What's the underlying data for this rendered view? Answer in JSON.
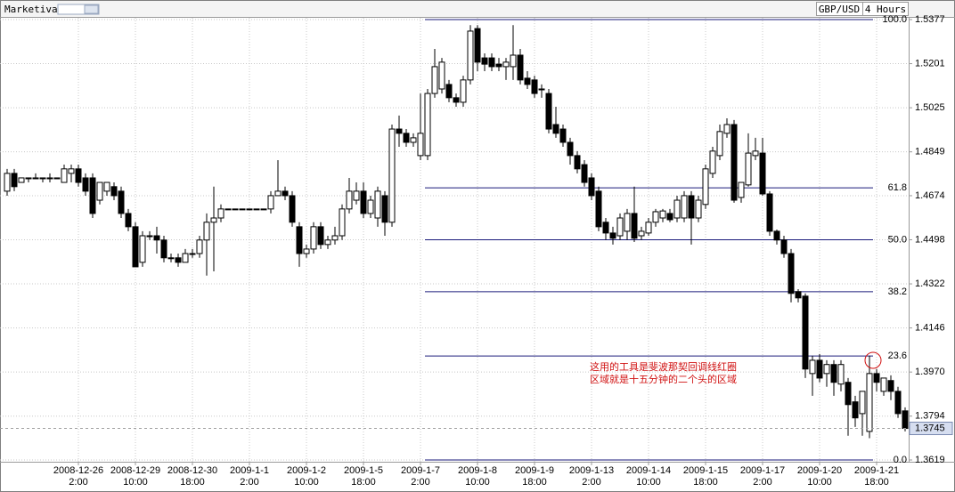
{
  "chart_data": {
    "type": "candlestick",
    "source": "Marketiva",
    "title": "GBP/USD",
    "timeframe": "4 Hours",
    "up_color": "#ffffff",
    "down_color": "#000000",
    "grid": true,
    "ylim": [
      1.3619,
      1.5377
    ],
    "yticks": [
      1.5377,
      1.5201,
      1.5025,
      1.4849,
      1.4674,
      1.4498,
      1.4322,
      1.4146,
      {
        "value": 1.397,
        "label": "1.3970"
      },
      1.3794,
      1.3619
    ],
    "current_price": 1.3745,
    "fibonacci": {
      "high": 1.5377,
      "low": 1.3619,
      "color": "#1a1a7a",
      "levels": [
        {
          "value": 100,
          "label": "100.0"
        },
        61.8,
        {
          "value": 50,
          "label": "50.0"
        },
        38.2,
        23.6,
        {
          "value": 0,
          "label": "0.0"
        }
      ]
    },
    "annotation": {
      "color": "#d01010",
      "lines": [
        "这用的工具是斐波那契回调线红圈",
        "区域就是十五分钟的二个头的区域"
      ]
    },
    "categories": [
      null,
      null,
      null,
      null,
      null,
      null,
      null,
      null,
      null,
      null,
      [
        "2008-12-26",
        "2:00"
      ],
      null,
      null,
      null,
      null,
      null,
      null,
      null,
      [
        "2008-12-29",
        "10:00"
      ],
      null,
      null,
      null,
      null,
      null,
      null,
      null,
      [
        "2008-12-30",
        "18:00"
      ],
      null,
      null,
      null,
      null,
      null,
      null,
      null,
      [
        "2009-1-1",
        "2:00"
      ],
      null,
      null,
      null,
      null,
      null,
      null,
      null,
      [
        "2009-1-2",
        "10:00"
      ],
      null,
      null,
      null,
      null,
      null,
      null,
      null,
      [
        "2009-1-5",
        "18:00"
      ],
      null,
      null,
      null,
      null,
      null,
      null,
      null,
      [
        "2009-1-7",
        "2:00"
      ],
      null,
      null,
      null,
      null,
      null,
      null,
      null,
      [
        "2009-1-8",
        "10:00"
      ],
      null,
      null,
      null,
      null,
      null,
      null,
      null,
      [
        "2009-1-9",
        "18:00"
      ],
      null,
      null,
      null,
      null,
      null,
      null,
      null,
      [
        "2009-1-13",
        "2:00"
      ],
      null,
      null,
      null,
      null,
      null,
      null,
      null,
      [
        "2009-1-14",
        "10:00"
      ],
      null,
      null,
      null,
      null,
      null,
      null,
      null,
      [
        "2009-1-15",
        "18:00"
      ],
      null,
      null,
      null,
      null,
      null,
      null,
      null,
      [
        "2009-1-17",
        "2:00"
      ],
      null,
      null,
      null,
      null,
      null,
      null,
      null,
      [
        "2009-1-20",
        "10:00"
      ],
      null,
      null,
      null,
      null,
      null,
      null,
      null,
      [
        "2009-1-21",
        "18:00"
      ],
      null,
      null,
      null,
      null
    ],
    "ohlc": [
      [
        1.4692,
        1.4781,
        1.4674,
        1.4763
      ],
      [
        1.4763,
        1.4781,
        1.4692,
        1.471
      ],
      [
        1.4727,
        1.4745,
        1.4727,
        1.4745
      ],
      [
        1.4745,
        1.4745,
        1.4727,
        1.4745
      ],
      [
        1.4745,
        1.4763,
        1.4745,
        1.4745
      ],
      [
        1.4745,
        1.4745,
        1.4727,
        1.4745
      ],
      [
        1.4745,
        1.4763,
        1.4727,
        1.4745
      ],
      [
        1.4745,
        1.4745,
        1.4745,
        1.4745
      ],
      [
        1.4727,
        1.4798,
        1.4727,
        1.4781
      ],
      [
        1.4763,
        1.4798,
        1.4727,
        1.4781
      ],
      [
        1.4781,
        1.4798,
        1.471,
        1.4727
      ],
      [
        1.4745,
        1.4763,
        1.4674,
        1.4692
      ],
      [
        1.4745,
        1.4763,
        1.4585,
        1.4603
      ],
      [
        1.4656,
        1.4727,
        1.4639,
        1.4727
      ],
      [
        1.4692,
        1.4727,
        1.4674,
        1.4727
      ],
      [
        1.471,
        1.4727,
        1.4656,
        1.4674
      ],
      [
        1.4692,
        1.471,
        1.4585,
        1.4603
      ],
      [
        1.4603,
        1.4621,
        1.4532,
        1.455
      ],
      [
        1.455,
        1.4568,
        1.439,
        1.439
      ],
      [
        1.4408,
        1.4532,
        1.439,
        1.4514
      ],
      [
        1.4514,
        1.4532,
        1.4497,
        1.4514
      ],
      [
        1.4514,
        1.455,
        1.4443,
        1.4497
      ],
      [
        1.4497,
        1.4514,
        1.4408,
        1.4426
      ],
      [
        1.4426,
        1.4443,
        1.4408,
        1.4426
      ],
      [
        1.4426,
        1.4443,
        1.439,
        1.4408
      ],
      [
        1.4408,
        1.4461,
        1.4408,
        1.4443
      ],
      [
        1.4443,
        1.4461,
        1.4426,
        1.4443
      ],
      [
        1.4443,
        1.4514,
        1.4426,
        1.4497
      ],
      [
        1.4497,
        1.4603,
        1.4355,
        1.4568
      ],
      [
        1.4568,
        1.471,
        1.4372,
        1.4585
      ],
      [
        1.4585,
        1.4639,
        1.4568,
        1.4621
      ],
      [
        1.4621,
        1.4621,
        1.4621,
        1.4621
      ],
      [
        1.4621,
        1.4621,
        1.4621,
        1.4621
      ],
      [
        1.4621,
        1.4621,
        1.4621,
        1.4621
      ],
      [
        1.4621,
        1.4621,
        1.4621,
        1.4621
      ],
      [
        1.4621,
        1.4621,
        1.4621,
        1.4621
      ],
      [
        1.4621,
        1.4621,
        1.4621,
        1.4621
      ],
      [
        1.4621,
        1.4692,
        1.4603,
        1.4674
      ],
      [
        1.4674,
        1.4816,
        1.4674,
        1.4692
      ],
      [
        1.4692,
        1.471,
        1.4656,
        1.4674
      ],
      [
        1.4674,
        1.4692,
        1.455,
        1.4568
      ],
      [
        1.455,
        1.4568,
        1.439,
        1.4443
      ],
      [
        1.4443,
        1.4479,
        1.4426,
        1.4461
      ],
      [
        1.4461,
        1.4568,
        1.4443,
        1.455
      ],
      [
        1.455,
        1.4568,
        1.4461,
        1.4479
      ],
      [
        1.4479,
        1.4514,
        1.4461,
        1.4497
      ],
      [
        1.4497,
        1.455,
        1.4479,
        1.4514
      ],
      [
        1.4514,
        1.4639,
        1.4497,
        1.4621
      ],
      [
        1.4621,
        1.4745,
        1.4603,
        1.4692
      ],
      [
        1.4656,
        1.4727,
        1.4639,
        1.4692
      ],
      [
        1.4692,
        1.4727,
        1.4585,
        1.4603
      ],
      [
        1.4603,
        1.4674,
        1.4585,
        1.4656
      ],
      [
        1.4585,
        1.471,
        1.455,
        1.4692
      ],
      [
        1.4674,
        1.4692,
        1.4514,
        1.4568
      ],
      [
        1.4568,
        1.4958,
        1.455,
        1.494
      ],
      [
        1.494,
        1.4994,
        1.4869,
        1.4923
      ],
      [
        1.4923,
        1.494,
        1.4869,
        1.4887
      ],
      [
        1.4887,
        1.4923,
        1.4869,
        1.4905
      ],
      [
        1.4834,
        1.5082,
        1.4816,
        1.4923
      ],
      [
        1.4834,
        1.51,
        1.4816,
        1.5082
      ],
      [
        1.5082,
        1.526,
        1.5065,
        1.5189
      ],
      [
        1.51,
        1.5224,
        1.5082,
        1.5207
      ],
      [
        1.5118,
        1.5136,
        1.5047,
        1.5065
      ],
      [
        1.5065,
        1.5082,
        1.5029,
        1.5047
      ],
      [
        1.5047,
        1.5153,
        1.5029,
        1.5136
      ],
      [
        1.5136,
        1.5355,
        1.5118,
        1.5331
      ],
      [
        1.5341,
        1.5355,
        1.5171,
        1.5207
      ],
      [
        1.5224,
        1.5242,
        1.5171,
        1.5199
      ],
      [
        1.5224,
        1.5242,
        1.5171,
        1.5189
      ],
      [
        1.5199,
        1.5224,
        1.5171,
        1.5189
      ],
      [
        1.5189,
        1.5224,
        1.5136,
        1.5207
      ],
      [
        1.5189,
        1.5355,
        1.5136,
        1.5235
      ],
      [
        1.5235,
        1.526,
        1.5118,
        1.5136
      ],
      [
        1.5143,
        1.5171,
        1.51,
        1.5118
      ],
      [
        1.5136,
        1.5153,
        1.5065,
        1.5082
      ],
      [
        1.51,
        1.5118,
        1.5065,
        1.51
      ],
      [
        1.5082,
        1.51,
        1.4923,
        1.494
      ],
      [
        1.4958,
        1.5029,
        1.4905,
        1.4923
      ],
      [
        1.494,
        1.4958,
        1.4869,
        1.4887
      ],
      [
        1.4887,
        1.4905,
        1.4798,
        1.4834
      ],
      [
        1.4834,
        1.4852,
        1.4763,
        1.4781
      ],
      [
        1.4798,
        1.4816,
        1.471,
        1.4727
      ],
      [
        1.4745,
        1.4763,
        1.4656,
        1.4674
      ],
      [
        1.4692,
        1.471,
        1.4532,
        1.455
      ],
      [
        1.4568,
        1.4585,
        1.4497,
        1.4525
      ],
      [
        1.4525,
        1.455,
        1.4479,
        1.4504
      ],
      [
        1.4514,
        1.4603,
        1.4497,
        1.4585
      ],
      [
        1.4532,
        1.4621,
        1.4497,
        1.4603
      ],
      [
        1.4603,
        1.471,
        1.4489,
        1.4504
      ],
      [
        1.4514,
        1.455,
        1.4497,
        1.4532
      ],
      [
        1.4525,
        1.4585,
        1.4514,
        1.4568
      ],
      [
        1.4568,
        1.4621,
        1.455,
        1.461
      ],
      [
        1.4585,
        1.4621,
        1.4568,
        1.4613
      ],
      [
        1.4603,
        1.4621,
        1.4568,
        1.4578
      ],
      [
        1.4585,
        1.4674,
        1.4568,
        1.4656
      ],
      [
        1.4585,
        1.4692,
        1.4568,
        1.4674
      ],
      [
        1.4674,
        1.4692,
        1.4479,
        1.4585
      ],
      [
        1.4585,
        1.4674,
        1.4568,
        1.4656
      ],
      [
        1.4639,
        1.4798,
        1.4621,
        1.4781
      ],
      [
        1.4763,
        1.4869,
        1.4745,
        1.4852
      ],
      [
        1.4834,
        1.4958,
        1.4816,
        1.493
      ],
      [
        1.4923,
        1.4983,
        1.4905,
        1.4958
      ],
      [
        1.4958,
        1.4976,
        1.4646,
        1.4656
      ],
      [
        1.4667,
        1.4727,
        1.4646,
        1.4727
      ],
      [
        1.4717,
        1.4923,
        1.471,
        1.4844
      ],
      [
        1.4834,
        1.4905,
        1.4816,
        1.4852
      ],
      [
        1.4844,
        1.4905,
        1.4674,
        1.4681
      ],
      [
        1.4681,
        1.4692,
        1.4514,
        1.4532
      ],
      [
        1.4532,
        1.4539,
        1.4479,
        1.4497
      ],
      [
        1.4497,
        1.4514,
        1.4426,
        1.4443
      ],
      [
        1.4443,
        1.4461,
        1.4248,
        1.4284
      ],
      [
        1.4291,
        1.4301,
        1.4248,
        1.4266
      ],
      [
        1.4273,
        1.4284,
        1.3946,
        1.3982
      ],
      [
        1.3964,
        1.4035,
        1.3875,
        1.4017
      ],
      [
        1.4017,
        1.4042,
        1.3929,
        1.3946
      ],
      [
        1.3964,
        1.4017,
        1.3911,
        1.4
      ],
      [
        1.4,
        1.4017,
        1.3875,
        1.3929
      ],
      [
        1.3922,
        1.4017,
        1.3893,
        1.4
      ],
      [
        1.3929,
        1.3946,
        1.3716,
        1.384
      ],
      [
        1.3851,
        1.3875,
        1.3751,
        1.3787
      ],
      [
        1.3804,
        1.3893,
        1.3716,
        1.3893
      ],
      [
        1.3733,
        1.4035,
        1.3706,
        1.3964
      ],
      [
        1.3964,
        1.3982,
        1.3893,
        1.3929
      ],
      [
        1.3893,
        1.3946,
        1.3875,
        1.3946
      ],
      [
        1.3936,
        1.3957,
        1.3858,
        1.3893
      ],
      [
        1.3893,
        1.3911,
        1.3787,
        1.3804
      ],
      [
        1.3815,
        1.3829,
        1.3733,
        1.3745
      ]
    ]
  }
}
